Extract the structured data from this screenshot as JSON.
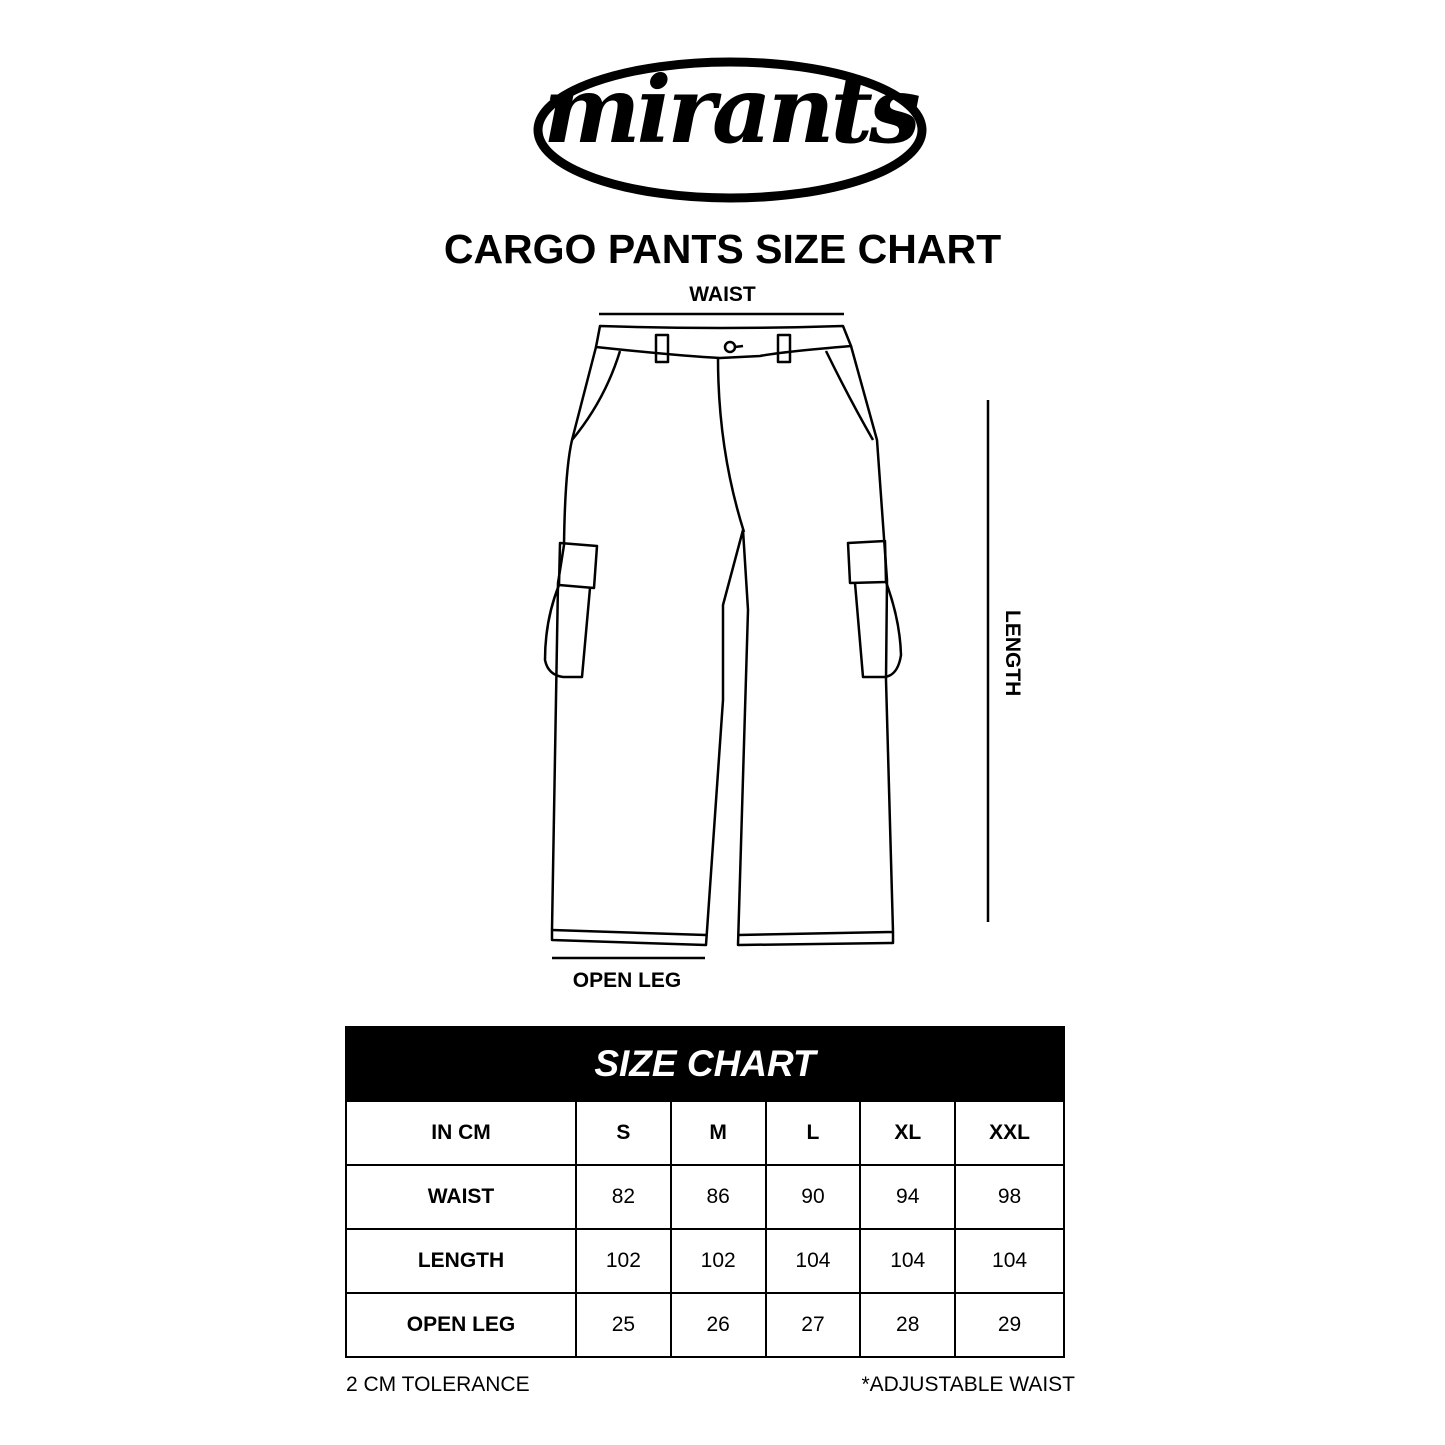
{
  "brand": {
    "logo_text": "mirants"
  },
  "title": "CARGO PANTS SIZE CHART",
  "diagram": {
    "waist_label": "WAIST",
    "length_label": "LENGTH",
    "open_leg_label": "OPEN LEG"
  },
  "table": {
    "title": "SIZE CHART",
    "columns": [
      "IN CM",
      "S",
      "M",
      "L",
      "XL",
      "XXL"
    ],
    "rows": [
      [
        "WAIST",
        "82",
        "86",
        "90",
        "94",
        "98"
      ],
      [
        "LENGTH",
        "102",
        "102",
        "104",
        "104",
        "104"
      ],
      [
        "OPEN LEG",
        "25",
        "26",
        "27",
        "28",
        "29"
      ]
    ]
  },
  "footer": {
    "left": "2 CM TOLERANCE",
    "right": "*ADJUSTABLE WAIST"
  }
}
